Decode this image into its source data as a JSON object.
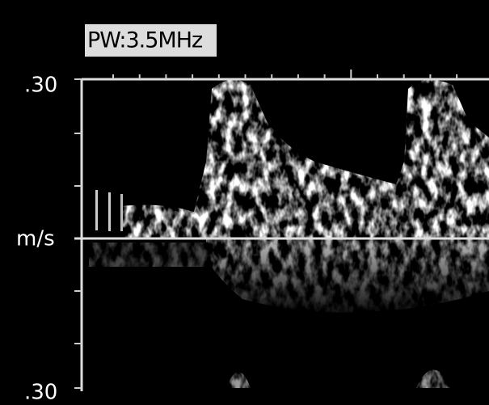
{
  "label_box": {
    "text": "PW:3.5MHz"
  },
  "axis": {
    "top_label": ".30",
    "unit": "m/s",
    "bottom_label": ".30"
  }
}
